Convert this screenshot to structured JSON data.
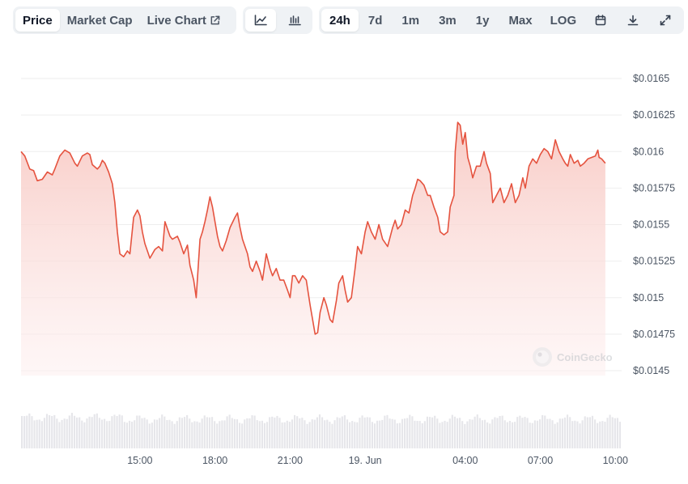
{
  "toolbar": {
    "metric_tabs": [
      {
        "label": "Price",
        "active": true
      },
      {
        "label": "Market Cap",
        "active": false
      },
      {
        "label": "Live Chart",
        "active": false,
        "icon": "external-link-icon"
      }
    ],
    "chart_type_tabs": [
      {
        "icon": "line-chart-icon",
        "active": true
      },
      {
        "icon": "candlestick-chart-icon",
        "active": false
      }
    ],
    "range_tabs": [
      {
        "label": "24h",
        "active": true
      },
      {
        "label": "7d",
        "active": false
      },
      {
        "label": "1m",
        "active": false
      },
      {
        "label": "3m",
        "active": false
      },
      {
        "label": "1y",
        "active": false
      },
      {
        "label": "Max",
        "active": false
      },
      {
        "label": "LOG",
        "active": false
      }
    ],
    "action_icons": [
      "calendar-icon",
      "download-icon",
      "expand-icon"
    ]
  },
  "watermark": "CoinGecko",
  "colors": {
    "line": "#e5533f",
    "fill_top": "#f8c9c3",
    "grid": "#eeeeee",
    "volume": "#e6e6ea",
    "axis_text": "#4b5563"
  },
  "chart_data": {
    "type": "area",
    "title": "",
    "xlabel": "",
    "ylabel": "",
    "ylim": [
      0.0145,
      0.0165
    ],
    "y_ticks": [
      "$0.0165",
      "$0.01625",
      "$0.016",
      "$0.01575",
      "$0.0155",
      "$0.01525",
      "$0.015",
      "$0.01475",
      "$0.0145"
    ],
    "y_tick_values": [
      0.0165,
      0.01625,
      0.016,
      0.01575,
      0.0155,
      0.01525,
      0.015,
      0.01475,
      0.0145
    ],
    "x_ticks": [
      "15:00",
      "18:00",
      "21:00",
      "19. Jun",
      "04:00",
      "07:00",
      "10:00"
    ],
    "x_tick_values": [
      15,
      18,
      21,
      24,
      28,
      31,
      34
    ],
    "xlim": [
      10.25,
      34.25
    ],
    "grid": true,
    "series": [
      {
        "values": [
          [
            10.25,
            0.016
          ],
          [
            10.4,
            0.01597
          ],
          [
            10.6,
            0.01588
          ],
          [
            10.75,
            0.01587
          ],
          [
            10.9,
            0.0158
          ],
          [
            11.1,
            0.01581
          ],
          [
            11.3,
            0.01586
          ],
          [
            11.5,
            0.01584
          ],
          [
            11.6,
            0.01588
          ],
          [
            11.8,
            0.01597
          ],
          [
            12.0,
            0.01601
          ],
          [
            12.2,
            0.01599
          ],
          [
            12.4,
            0.01592
          ],
          [
            12.5,
            0.0159
          ],
          [
            12.7,
            0.01597
          ],
          [
            12.9,
            0.01599
          ],
          [
            13.0,
            0.01598
          ],
          [
            13.1,
            0.01591
          ],
          [
            13.3,
            0.01588
          ],
          [
            13.4,
            0.0159
          ],
          [
            13.5,
            0.01594
          ],
          [
            13.6,
            0.01592
          ],
          [
            13.75,
            0.01586
          ],
          [
            13.9,
            0.01578
          ],
          [
            14.0,
            0.01565
          ],
          [
            14.1,
            0.01545
          ],
          [
            14.2,
            0.0153
          ],
          [
            14.35,
            0.01528
          ],
          [
            14.5,
            0.01532
          ],
          [
            14.6,
            0.0153
          ],
          [
            14.75,
            0.01555
          ],
          [
            14.9,
            0.0156
          ],
          [
            15.0,
            0.01556
          ],
          [
            15.1,
            0.01545
          ],
          [
            15.2,
            0.01537
          ],
          [
            15.4,
            0.01527
          ],
          [
            15.5,
            0.0153
          ],
          [
            15.6,
            0.01533
          ],
          [
            15.75,
            0.01535
          ],
          [
            15.9,
            0.01532
          ],
          [
            16.0,
            0.01552
          ],
          [
            16.2,
            0.01542
          ],
          [
            16.3,
            0.0154
          ],
          [
            16.5,
            0.01542
          ],
          [
            16.6,
            0.01538
          ],
          [
            16.75,
            0.0153
          ],
          [
            16.9,
            0.01536
          ],
          [
            17.0,
            0.01522
          ],
          [
            17.15,
            0.01512
          ],
          [
            17.25,
            0.015
          ],
          [
            17.4,
            0.0154
          ],
          [
            17.5,
            0.01545
          ],
          [
            17.6,
            0.01552
          ],
          [
            17.7,
            0.0156
          ],
          [
            17.8,
            0.01569
          ],
          [
            17.9,
            0.01562
          ],
          [
            18.0,
            0.01552
          ],
          [
            18.1,
            0.01542
          ],
          [
            18.2,
            0.01535
          ],
          [
            18.3,
            0.01532
          ],
          [
            18.45,
            0.01539
          ],
          [
            18.6,
            0.01548
          ],
          [
            18.8,
            0.01555
          ],
          [
            18.9,
            0.01558
          ],
          [
            19.0,
            0.01548
          ],
          [
            19.1,
            0.0154
          ],
          [
            19.3,
            0.0153
          ],
          [
            19.4,
            0.01521
          ],
          [
            19.5,
            0.01518
          ],
          [
            19.65,
            0.01525
          ],
          [
            19.8,
            0.01518
          ],
          [
            19.9,
            0.01512
          ],
          [
            20.05,
            0.0153
          ],
          [
            20.2,
            0.0152
          ],
          [
            20.3,
            0.01515
          ],
          [
            20.45,
            0.0152
          ],
          [
            20.6,
            0.01512
          ],
          [
            20.75,
            0.01512
          ],
          [
            20.9,
            0.01505
          ],
          [
            21.0,
            0.015
          ],
          [
            21.1,
            0.01515
          ],
          [
            21.2,
            0.01515
          ],
          [
            21.35,
            0.0151
          ],
          [
            21.5,
            0.01515
          ],
          [
            21.65,
            0.01512
          ],
          [
            21.8,
            0.01495
          ],
          [
            21.9,
            0.01485
          ],
          [
            22.0,
            0.01475
          ],
          [
            22.1,
            0.01476
          ],
          [
            22.2,
            0.0149
          ],
          [
            22.35,
            0.015
          ],
          [
            22.45,
            0.01495
          ],
          [
            22.6,
            0.01485
          ],
          [
            22.7,
            0.01483
          ],
          [
            22.85,
            0.01498
          ],
          [
            22.95,
            0.0151
          ],
          [
            23.1,
            0.01515
          ],
          [
            23.2,
            0.01505
          ],
          [
            23.3,
            0.01497
          ],
          [
            23.45,
            0.015
          ],
          [
            23.6,
            0.0152
          ],
          [
            23.7,
            0.01535
          ],
          [
            23.85,
            0.0153
          ],
          [
            24.0,
            0.01545
          ],
          [
            24.1,
            0.01552
          ],
          [
            24.25,
            0.01545
          ],
          [
            24.4,
            0.0154
          ],
          [
            24.55,
            0.0155
          ],
          [
            24.7,
            0.0154
          ],
          [
            24.9,
            0.01535
          ],
          [
            25.1,
            0.01548
          ],
          [
            25.2,
            0.01553
          ],
          [
            25.3,
            0.01547
          ],
          [
            25.45,
            0.0155
          ],
          [
            25.6,
            0.0156
          ],
          [
            25.75,
            0.01558
          ],
          [
            25.9,
            0.0157
          ],
          [
            26.0,
            0.01575
          ],
          [
            26.1,
            0.01581
          ],
          [
            26.2,
            0.0158
          ],
          [
            26.35,
            0.01577
          ],
          [
            26.5,
            0.0157
          ],
          [
            26.6,
            0.0157
          ],
          [
            26.75,
            0.01562
          ],
          [
            26.9,
            0.01555
          ],
          [
            27.0,
            0.01545
          ],
          [
            27.15,
            0.01543
          ],
          [
            27.3,
            0.01545
          ],
          [
            27.4,
            0.01562
          ],
          [
            27.55,
            0.0157
          ],
          [
            27.6,
            0.016
          ],
          [
            27.7,
            0.0162
          ],
          [
            27.8,
            0.01618
          ],
          [
            27.9,
            0.01605
          ],
          [
            28.0,
            0.01613
          ],
          [
            28.1,
            0.01596
          ],
          [
            28.2,
            0.0159
          ],
          [
            28.3,
            0.01582
          ],
          [
            28.45,
            0.0159
          ],
          [
            28.6,
            0.0159
          ],
          [
            28.75,
            0.016
          ],
          [
            28.85,
            0.01592
          ],
          [
            29.0,
            0.01585
          ],
          [
            29.1,
            0.01565
          ],
          [
            29.25,
            0.0157
          ],
          [
            29.4,
            0.01575
          ],
          [
            29.55,
            0.01565
          ],
          [
            29.7,
            0.0157
          ],
          [
            29.85,
            0.01578
          ],
          [
            30.0,
            0.01565
          ],
          [
            30.15,
            0.0157
          ],
          [
            30.3,
            0.01582
          ],
          [
            30.4,
            0.01575
          ],
          [
            30.55,
            0.0159
          ],
          [
            30.7,
            0.01595
          ],
          [
            30.85,
            0.01592
          ],
          [
            31.0,
            0.01598
          ],
          [
            31.15,
            0.01602
          ],
          [
            31.3,
            0.016
          ],
          [
            31.45,
            0.01595
          ],
          [
            31.6,
            0.01608
          ],
          [
            31.75,
            0.016
          ],
          [
            31.9,
            0.01595
          ],
          [
            32.0,
            0.01592
          ],
          [
            32.1,
            0.0159
          ],
          [
            32.2,
            0.01598
          ],
          [
            32.35,
            0.01592
          ],
          [
            32.5,
            0.01594
          ],
          [
            32.6,
            0.0159
          ],
          [
            32.75,
            0.01592
          ],
          [
            32.9,
            0.01595
          ],
          [
            33.05,
            0.01596
          ],
          [
            33.2,
            0.01597
          ],
          [
            33.3,
            0.01601
          ],
          [
            33.35,
            0.01596
          ],
          [
            33.45,
            0.01595
          ],
          [
            33.6,
            0.01592
          ]
        ]
      }
    ]
  }
}
